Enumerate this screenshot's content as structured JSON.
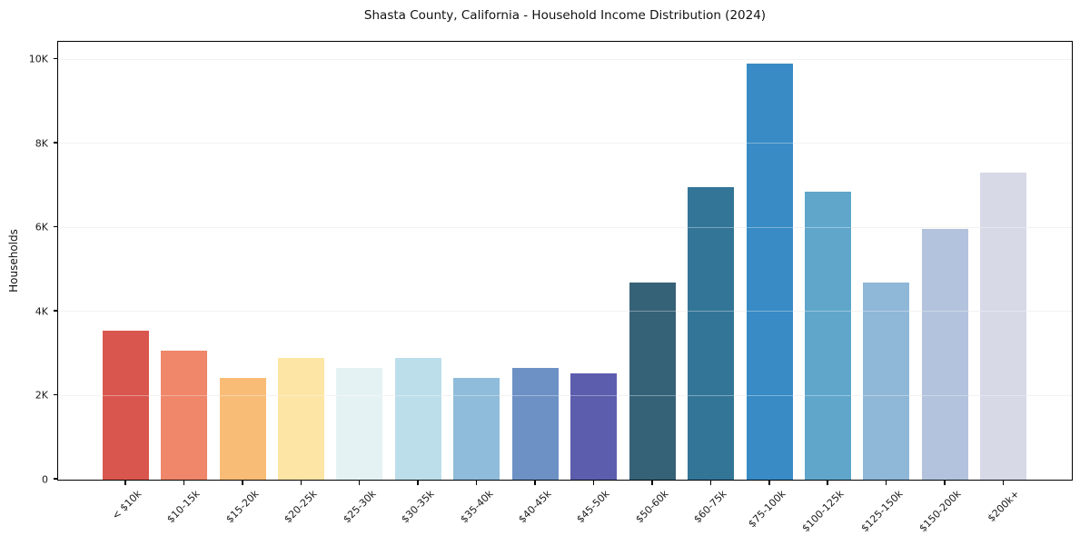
{
  "title": "Shasta County, California - Household Income Distribution (2024)",
  "chart_data": {
    "type": "bar",
    "title": "Shasta County, California - Household Income Distribution (2024)",
    "xlabel": "",
    "ylabel": "Households",
    "categories": [
      "< $10k",
      "$10-15k",
      "$15-20k",
      "$20-25k",
      "$25-30k",
      "$30-35k",
      "$35-40k",
      "$40-45k",
      "$45-50k",
      "$50-60k",
      "$60-75k",
      "$75-100k",
      "$100-125k",
      "$125-150k",
      "$150-200k",
      "$200k+"
    ],
    "values": [
      3550,
      3080,
      2420,
      2900,
      2650,
      2900,
      2420,
      2660,
      2530,
      4700,
      6960,
      9900,
      6860,
      4700,
      5970,
      7300
    ],
    "bar_colors": [
      "#d9564e",
      "#f0866a",
      "#f9bc77",
      "#fde5a5",
      "#e5f2f4",
      "#bcdeea",
      "#8fbcda",
      "#6d91c5",
      "#5c5dac",
      "#366278",
      "#337597",
      "#388bc4",
      "#60a6cb",
      "#8fb7d8",
      "#b3c3dd",
      "#d7d9e7"
    ],
    "ylim": [
      0,
      10400
    ],
    "yticks": [
      {
        "value": 0,
        "label": "0"
      },
      {
        "value": 2000,
        "label": "2K"
      },
      {
        "value": 4000,
        "label": "4K"
      },
      {
        "value": 6000,
        "label": "6K"
      },
      {
        "value": 8000,
        "label": "8K"
      },
      {
        "value": 10000,
        "label": "10K"
      }
    ],
    "grid": "horizontal",
    "legend": "none",
    "gridline_color": "#ececec",
    "spine_color": "#000000",
    "background_color": "#ffffff"
  }
}
